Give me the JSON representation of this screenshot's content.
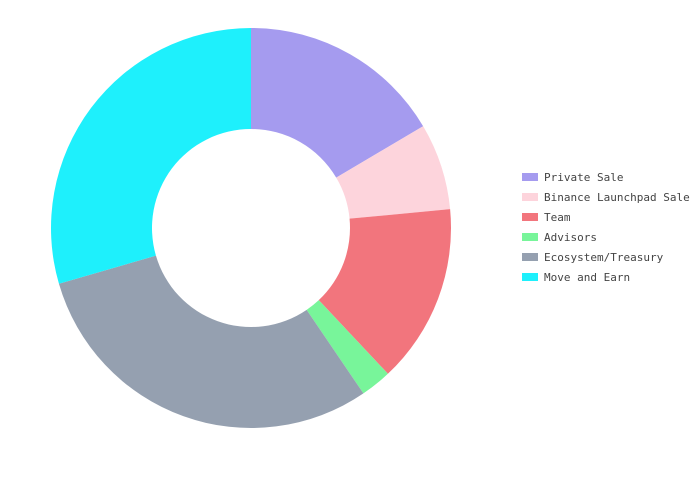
{
  "chart_data": {
    "type": "pie",
    "donut": true,
    "direction": "clockwise",
    "start_angle": "top",
    "legend_placement": "right",
    "slices": [
      {
        "label": "Private Sale",
        "value": 16.5,
        "color": "#a59bef"
      },
      {
        "label": "Binance Launchpad Sale",
        "value": 7.0,
        "color": "#fdd4dc"
      },
      {
        "label": "Team",
        "value": 14.5,
        "color": "#f2757d"
      },
      {
        "label": "Advisors",
        "value": 2.5,
        "color": "#78f59a"
      },
      {
        "label": "Ecosystem/Treasury",
        "value": 30.0,
        "color": "#95a0b0"
      },
      {
        "label": "Move and Earn",
        "value": 29.5,
        "color": "#1ef0fc"
      }
    ]
  }
}
